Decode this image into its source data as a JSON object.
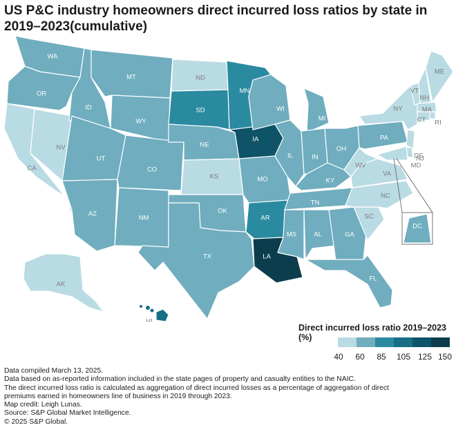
{
  "title": "US P&C industry homeowners direct incurred loss ratios by state in 2019–2023(cumulative)",
  "legend": {
    "title": "Direct incurred loss ratio 2019–2023 (%)",
    "ticks": [
      "40",
      "60",
      "85",
      "105",
      "125",
      "150"
    ],
    "colors": [
      "#b9dbe3",
      "#6fadbf",
      "#2a8aa0",
      "#176e86",
      "#0e5368",
      "#0b3d4d"
    ]
  },
  "states": [
    {
      "abbr": "WA",
      "cls": 1
    },
    {
      "abbr": "OR",
      "cls": 1
    },
    {
      "abbr": "CA",
      "cls": 0
    },
    {
      "abbr": "NV",
      "cls": 0
    },
    {
      "abbr": "ID",
      "cls": 1
    },
    {
      "abbr": "MT",
      "cls": 1
    },
    {
      "abbr": "WY",
      "cls": 1
    },
    {
      "abbr": "UT",
      "cls": 1
    },
    {
      "abbr": "AZ",
      "cls": 1
    },
    {
      "abbr": "CO",
      "cls": 1
    },
    {
      "abbr": "NM",
      "cls": 1
    },
    {
      "abbr": "ND",
      "cls": 0
    },
    {
      "abbr": "SD",
      "cls": 2
    },
    {
      "abbr": "NE",
      "cls": 1
    },
    {
      "abbr": "KS",
      "cls": 0
    },
    {
      "abbr": "OK",
      "cls": 1
    },
    {
      "abbr": "TX",
      "cls": 1
    },
    {
      "abbr": "MN",
      "cls": 2
    },
    {
      "abbr": "IA",
      "cls": 4
    },
    {
      "abbr": "MO",
      "cls": 1
    },
    {
      "abbr": "AR",
      "cls": 2
    },
    {
      "abbr": "LA",
      "cls": 5
    },
    {
      "abbr": "WI",
      "cls": 1
    },
    {
      "abbr": "IL",
      "cls": 1
    },
    {
      "abbr": "MI",
      "cls": 1
    },
    {
      "abbr": "IN",
      "cls": 1
    },
    {
      "abbr": "OH",
      "cls": 1
    },
    {
      "abbr": "KY",
      "cls": 1
    },
    {
      "abbr": "TN",
      "cls": 1
    },
    {
      "abbr": "MS",
      "cls": 1
    },
    {
      "abbr": "AL",
      "cls": 1
    },
    {
      "abbr": "GA",
      "cls": 1
    },
    {
      "abbr": "FL",
      "cls": 1
    },
    {
      "abbr": "SC",
      "cls": 0
    },
    {
      "abbr": "NC",
      "cls": 0
    },
    {
      "abbr": "VA",
      "cls": 0
    },
    {
      "abbr": "WV",
      "cls": 0
    },
    {
      "abbr": "PA",
      "cls": 1
    },
    {
      "abbr": "NY",
      "cls": 0
    },
    {
      "abbr": "VT",
      "cls": 0
    },
    {
      "abbr": "NH",
      "cls": 0
    },
    {
      "abbr": "ME",
      "cls": 0
    },
    {
      "abbr": "MA",
      "cls": 0
    },
    {
      "abbr": "RI",
      "cls": 0
    },
    {
      "abbr": "CT",
      "cls": 0
    },
    {
      "abbr": "NJ",
      "cls": 0
    },
    {
      "abbr": "DE",
      "cls": 0
    },
    {
      "abbr": "MD",
      "cls": 0
    },
    {
      "abbr": "DC",
      "cls": 1
    },
    {
      "abbr": "AK",
      "cls": 0
    },
    {
      "abbr": "HI",
      "cls": 3
    }
  ],
  "notes": [
    "Data compiled March 13, 2025.",
    "Data based on as-reported information included in the state pages of property and casualty entities to the NAIC.",
    "The direct incurred loss ratio is calculated as aggregation of direct incurred losses as a percentage of aggregation of direct",
    "premiums earned in homeowners line of business in 2019 through 2023.",
    "Map credit: Leigh Lunas.",
    "Source: S&P Global Market Intelligence.",
    "© 2025 S&P Global."
  ]
}
